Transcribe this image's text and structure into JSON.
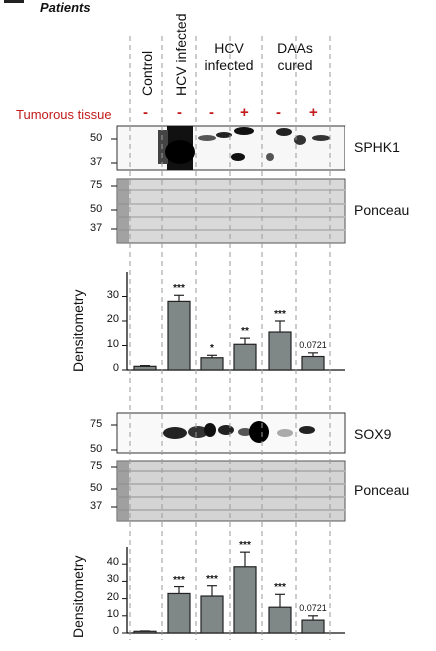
{
  "panel_title": "Patients",
  "groups": {
    "control": "Control",
    "hcv_infected_a": "HCV infected",
    "hcv_infected_b_line1": "HCV",
    "hcv_infected_b_line2": "infected",
    "daas_line1": "DAAs",
    "daas_line2": "cured"
  },
  "tumorous_label": "Tumorous tissue",
  "tumorous_signs": [
    "-",
    "-",
    "-",
    "+",
    "-",
    "+"
  ],
  "blots": {
    "sphk1_label": "SPHK1",
    "ponceau_label": "Ponceau",
    "sox9_label": "SOX9",
    "ponceau2_label": "Ponceau",
    "sphk1_mw": [
      "50",
      "37"
    ],
    "ponceau_mw": [
      "75",
      "50",
      "37"
    ],
    "sox9_mw": [
      "75",
      "50"
    ],
    "ponceau2_mw": [
      "75",
      "50",
      "37"
    ]
  },
  "colors": {
    "bar": "#7f8787",
    "tumor_red": "#c21b1b",
    "guide": "#9a9a9a"
  },
  "chart_data": [
    {
      "type": "bar",
      "target": "SPHK1",
      "ylabel": "Densitometry",
      "ylim": [
        0,
        40
      ],
      "yticks": [
        0,
        10,
        20,
        30
      ],
      "categories": [
        "Control",
        "HCV infected",
        "HCV infected -",
        "HCV infected +",
        "DAAs cured -",
        "DAAs cured +"
      ],
      "values": [
        1.5,
        28,
        5,
        10.5,
        15.5,
        5.5
      ],
      "errors": [
        0.3,
        2.5,
        1.0,
        2.5,
        4.5,
        1.5
      ],
      "annotations": [
        "",
        "***",
        "*",
        "**",
        "***",
        "0.0721"
      ]
    },
    {
      "type": "bar",
      "target": "SOX9",
      "ylabel": "Densitometry",
      "ylim": [
        0,
        50
      ],
      "yticks": [
        0,
        10,
        20,
        30,
        40
      ],
      "categories": [
        "Control",
        "HCV infected",
        "HCV infected -",
        "HCV infected +",
        "DAAs cured -",
        "DAAs cured +"
      ],
      "values": [
        1,
        23,
        21.5,
        38.5,
        15,
        7.5
      ],
      "errors": [
        0.2,
        4,
        6,
        8.5,
        7.5,
        2.5
      ],
      "annotations": [
        "",
        "***",
        "***",
        "***",
        "***",
        "0.0721"
      ]
    }
  ]
}
